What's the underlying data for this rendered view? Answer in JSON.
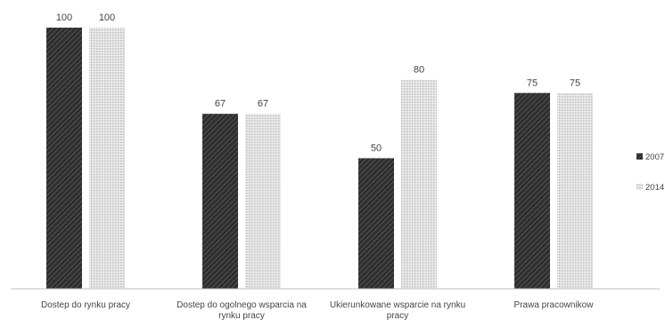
{
  "chart_data": {
    "type": "bar",
    "title": "",
    "xlabel": "",
    "ylabel": "",
    "categories": [
      [
        "Dostep do rynku pracy"
      ],
      [
        "Dostep do ogolnego wsparcia na",
        "rynku pracy"
      ],
      [
        "Ukierunkowane wsparcie na rynku",
        "pracy"
      ],
      [
        "Prawa pracownikow"
      ]
    ],
    "series": [
      {
        "name": "2007",
        "values": [
          100,
          67,
          50,
          75
        ],
        "color": "#3a3a3a",
        "pattern": "diagonal-hatch-dark"
      },
      {
        "name": "2014",
        "values": [
          100,
          67,
          80,
          75
        ],
        "color": "#d4d4d4",
        "pattern": "dotted-light"
      }
    ],
    "ylim": [
      0,
      100
    ],
    "grid": false,
    "legend_position": "right"
  }
}
